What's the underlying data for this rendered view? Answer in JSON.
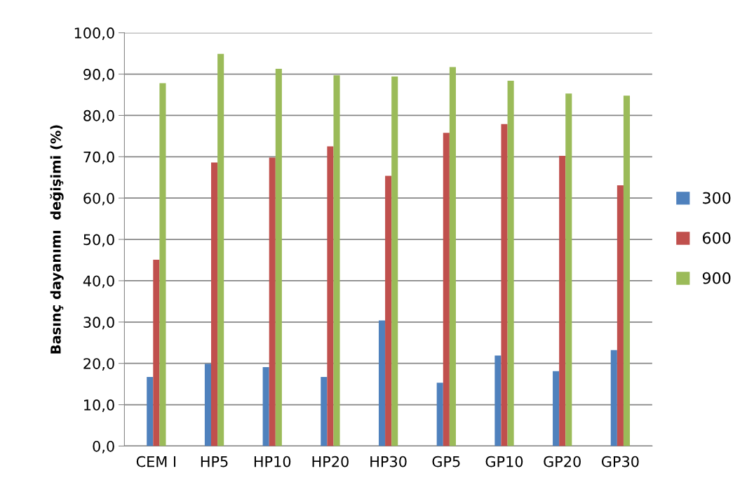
{
  "chart_data": {
    "type": "bar",
    "ylabel": "Basınç dayanımı  değişimi (%)",
    "categories": [
      "CEM I",
      "HP5",
      "HP10",
      "HP20",
      "HP30",
      "GP5",
      "GP10",
      "GP20",
      "GP30"
    ],
    "series": [
      {
        "name": "300",
        "color": "#4f81bd",
        "values": [
          16.7,
          19.9,
          19.1,
          16.7,
          30.4,
          15.3,
          21.9,
          18.1,
          23.2
        ]
      },
      {
        "name": "600",
        "color": "#c0504d",
        "values": [
          45.1,
          68.6,
          69.8,
          72.5,
          65.4,
          75.8,
          77.9,
          70.2,
          63.1
        ]
      },
      {
        "name": "900",
        "color": "#9bbb59",
        "values": [
          87.8,
          94.9,
          91.3,
          89.7,
          89.4,
          91.7,
          88.4,
          85.3,
          84.8
        ]
      }
    ],
    "ylim": [
      0,
      100
    ],
    "yticks": [
      {
        "value": 0,
        "label": "0,0"
      },
      {
        "value": 10,
        "label": "10,0"
      },
      {
        "value": 20,
        "label": "20,0"
      },
      {
        "value": 30,
        "label": "30,0"
      },
      {
        "value": 40,
        "label": "40,0"
      },
      {
        "value": 50,
        "label": "50,0"
      },
      {
        "value": 60,
        "label": "60,0"
      },
      {
        "value": 70,
        "label": "70,0"
      },
      {
        "value": 80,
        "label": "80,0"
      },
      {
        "value": 90,
        "label": "90,0"
      },
      {
        "value": 100,
        "label": "100,0"
      }
    ],
    "grid": "y",
    "legend": "right"
  }
}
